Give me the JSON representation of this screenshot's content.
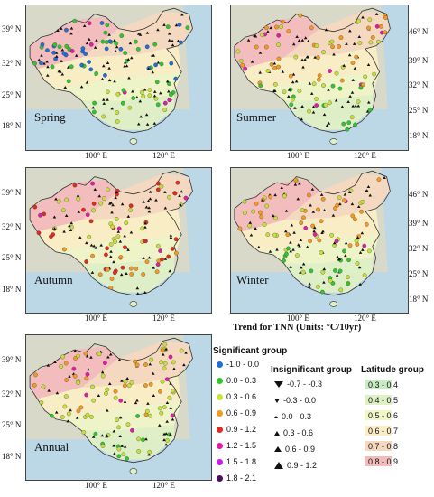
{
  "panels": [
    {
      "label": "Spring",
      "lat_labels": [
        "39° N",
        "32° N",
        "25° N",
        "18° N"
      ],
      "lat_side": "left",
      "lon_labels": [
        "100° E",
        "120° E"
      ]
    },
    {
      "label": "Summer",
      "lat_labels": [
        "46° N",
        "39° N",
        "32° N",
        "25° N",
        "18° N"
      ],
      "lat_side": "right",
      "lon_labels": [
        "100° E",
        "120° E"
      ]
    },
    {
      "label": "Autumn",
      "lat_labels": [
        "39° N",
        "32° N",
        "25° N",
        "18° N"
      ],
      "lat_side": "left",
      "lon_labels": [
        "100° E",
        "120° E"
      ]
    },
    {
      "label": "Winter",
      "lat_labels": [
        "46° N",
        "39° N",
        "32° N",
        "25° N",
        "18° N"
      ],
      "lat_side": "right",
      "lon_labels": [
        "100° E",
        "120° E"
      ]
    },
    {
      "label": "Annual",
      "lat_labels": [
        "39° N",
        "32° N",
        "25° N",
        "18° N"
      ],
      "lat_side": "left",
      "lon_labels": [
        "100° E",
        "120° E"
      ]
    }
  ],
  "legend_title": "Trend for TNN (Units:  °C/10yr)",
  "significant_group": {
    "title": "Significant group",
    "items": [
      {
        "label": "-1.0 - 0.0",
        "color": "#1f6fd6"
      },
      {
        "label": "0.0 - 0.3",
        "color": "#2ec82e"
      },
      {
        "label": "0.3 - 0.6",
        "color": "#c8e03a"
      },
      {
        "label": "0.6 - 0.9",
        "color": "#f59a1f"
      },
      {
        "label": "0.9 - 1.2",
        "color": "#e42a1c"
      },
      {
        "label": "1.2 - 1.5",
        "color": "#e31ca8"
      },
      {
        "label": "1.5 - 1.8",
        "color": "#c71ef0"
      },
      {
        "label": "1.8 - 2.1",
        "color": "#4a1060"
      }
    ]
  },
  "insignificant_group": {
    "title": "Insignificant group",
    "items": [
      {
        "label": "-0.7 - -0.3",
        "marker": "down-large"
      },
      {
        "label": "-0.3 - 0.0",
        "marker": "down-small"
      },
      {
        "label": "0.0 - 0.3",
        "marker": "up-tiny"
      },
      {
        "label": "0.3 - 0.6",
        "marker": "up-small"
      },
      {
        "label": "0.6 - 0.9",
        "marker": "up-medium"
      },
      {
        "label": "0.9 - 1.2",
        "marker": "up-large"
      }
    ]
  },
  "latitude_group": {
    "title": "Latitude group",
    "items": [
      {
        "label": "0.3 - 0.4",
        "color": "#c9eac4"
      },
      {
        "label": "0.4 - 0.5",
        "color": "#dff0c6"
      },
      {
        "label": "0.5 - 0.6",
        "color": "#f0f6c8"
      },
      {
        "label": "0.6 - 0.7",
        "color": "#fbeec6"
      },
      {
        "label": "0.7 - 0.8",
        "color": "#f6d8bf"
      },
      {
        "label": "0.8 - 0.9",
        "color": "#f3bcbc"
      }
    ]
  }
}
